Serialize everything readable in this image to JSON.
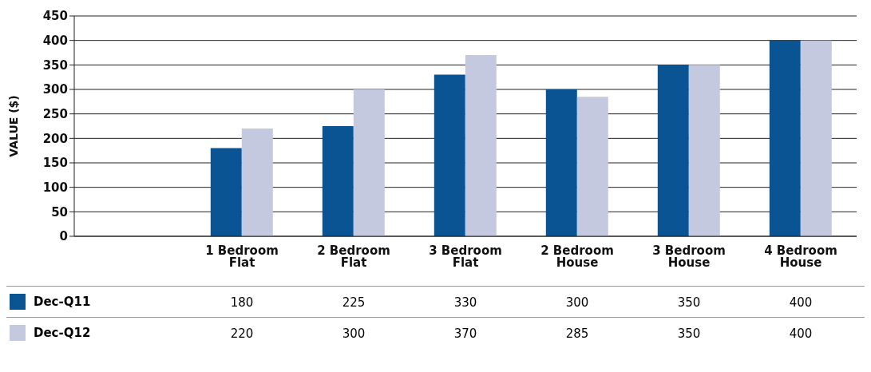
{
  "chart_data": {
    "type": "bar",
    "ylabel": "VALUE ($)",
    "categories": [
      null,
      "1 Bedroom Flat",
      "2 Bedroom Flat",
      "3 Bedroom Flat",
      "2 Bedroom House",
      "3 Bedroom House",
      "4 Bedroom House"
    ],
    "series": [
      {
        "name": "Dec-Q11",
        "color": "#0a5494",
        "values": [
          null,
          180,
          225,
          330,
          300,
          350,
          400
        ]
      },
      {
        "name": "Dec-Q12",
        "color": "#c5c9e0",
        "values": [
          null,
          220,
          300,
          370,
          285,
          350,
          400
        ]
      }
    ],
    "ylim": [
      0,
      450
    ],
    "yticks": [
      0,
      50,
      100,
      150,
      200,
      250,
      300,
      350,
      400,
      450
    ],
    "grid": "y",
    "legend": "bottom",
    "data_labels": true
  }
}
